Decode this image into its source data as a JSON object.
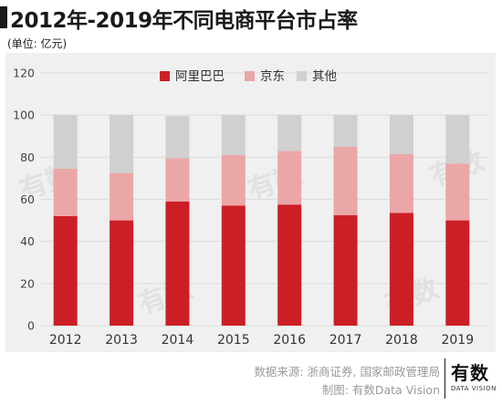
{
  "title": "2012年-2019年不同电商平台市占率",
  "unit": "(单位: 亿元)",
  "source_line1": "数据来源: 浙商证券, 国家邮政管理局",
  "source_line2": "制图: 有数Data Vision",
  "logo_text": "有数",
  "logo_sub": "DATA VISION",
  "watermark_text": "有数",
  "chart_data": {
    "type": "bar",
    "stacked": true,
    "categories": [
      "2012",
      "2013",
      "2014",
      "2015",
      "2016",
      "2017",
      "2018",
      "2019"
    ],
    "series": [
      {
        "name": "阿里巴巴",
        "color": "#cc1f25",
        "values": [
          52,
          50,
          59,
          57,
          57.5,
          52.5,
          53.5,
          50
        ]
      },
      {
        "name": "京东",
        "color": "#eba6a7",
        "values": [
          22.5,
          22.5,
          20.5,
          24,
          25.5,
          32.5,
          28,
          27
        ]
      },
      {
        "name": "其他",
        "color": "#d0d0d0",
        "values": [
          25.5,
          27.5,
          20,
          19,
          17,
          15,
          18.5,
          23
        ]
      }
    ],
    "yticks": [
      0,
      20,
      40,
      60,
      80,
      100,
      120
    ],
    "ylim": [
      0,
      120
    ],
    "grid": true,
    "legend_position": "top-center"
  }
}
